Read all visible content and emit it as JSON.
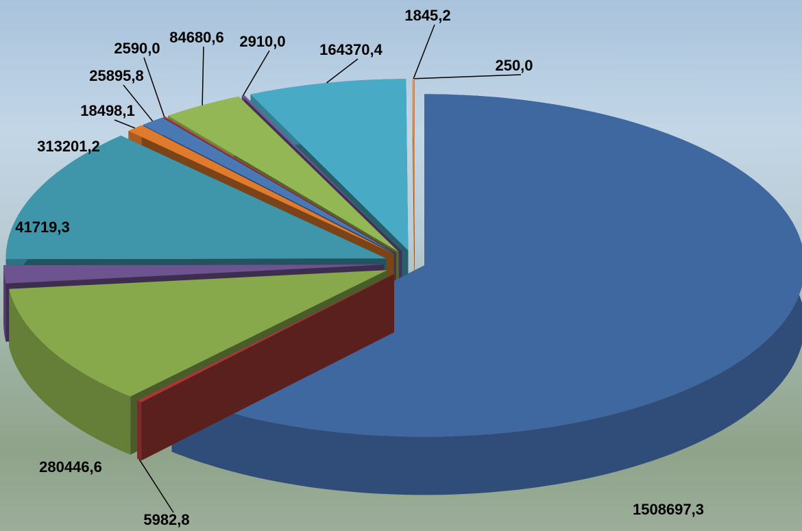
{
  "chart_data": {
    "type": "pie",
    "values": [
      1508697.3,
      5982.8,
      280446.6,
      41719.3,
      313201.2,
      18498.1,
      25895.8,
      2590.0,
      84680.6,
      2910.0,
      164370.4,
      1845.2,
      250.0
    ],
    "value_labels": [
      "1508697,3",
      "5982,8",
      "280446,6",
      "41719,3",
      "313201,2",
      "18498,1",
      "25895,8",
      "2590,0",
      "84680,6",
      "2910,0",
      "164370,4",
      "1845,2",
      "250,0"
    ],
    "colors": [
      "#3f67a0",
      "#a33a36",
      "#87a84b",
      "#6e5391",
      "#3f96aa",
      "#e07a2c",
      "#4a78b4",
      "#b0413d",
      "#94b755",
      "#765a9a",
      "#48aac4",
      "#f0923c",
      "#4f81bd"
    ]
  }
}
